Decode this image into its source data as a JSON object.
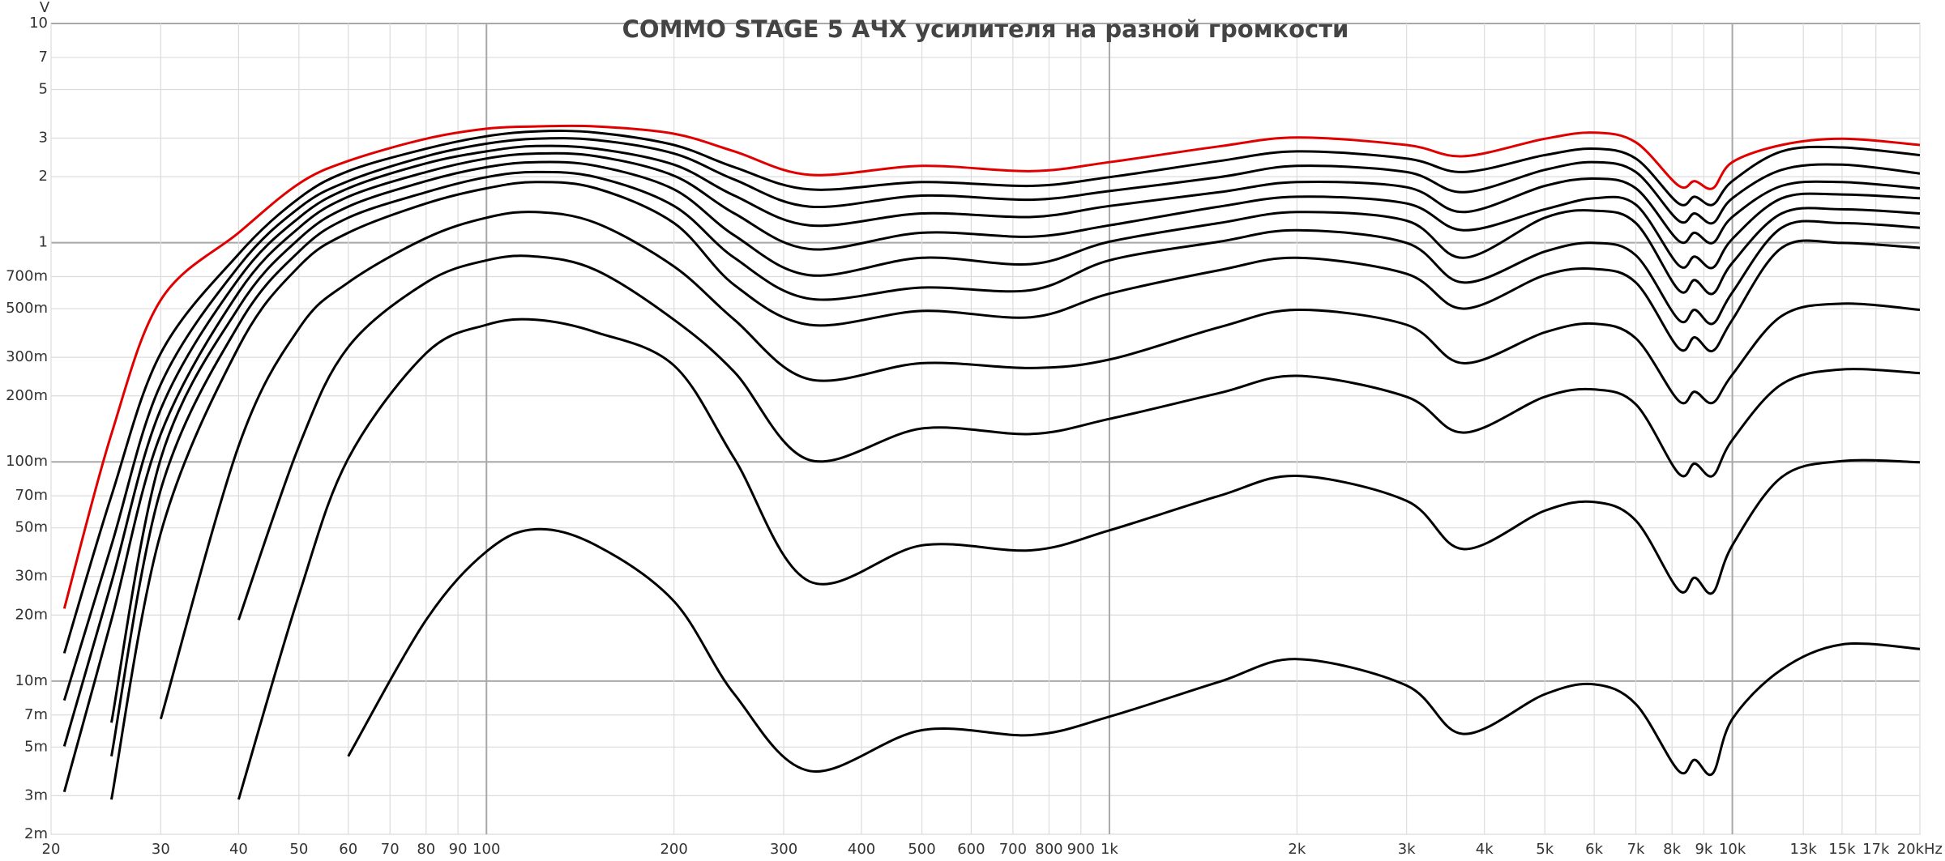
{
  "chart_data": {
    "type": "line",
    "title": "COMMO STAGE 5 АЧХ усилителя на разной громкости",
    "ylabel": "V",
    "xscale": "log",
    "yscale": "log",
    "grid": true,
    "xlim": [
      20,
      20000
    ],
    "ylim": [
      0.002,
      10
    ],
    "xticks": [
      20,
      30,
      40,
      50,
      60,
      70,
      80,
      90,
      100,
      200,
      300,
      400,
      500,
      600,
      700,
      800,
      900,
      {
        "value": 1000,
        "label": "1k"
      },
      {
        "value": 2000,
        "label": "2k"
      },
      {
        "value": 3000,
        "label": "3k"
      },
      {
        "value": 4000,
        "label": "4k"
      },
      {
        "value": 5000,
        "label": "5k"
      },
      {
        "value": 6000,
        "label": "6k"
      },
      {
        "value": 7000,
        "label": "7k"
      },
      {
        "value": 8000,
        "label": "8k"
      },
      {
        "value": 9000,
        "label": "9k"
      },
      {
        "value": 10000,
        "label": "10k"
      },
      {
        "value": 13000,
        "label": "13k"
      },
      {
        "value": 15000,
        "label": "15k"
      },
      {
        "value": 17000,
        "label": "17k"
      },
      {
        "value": 20000,
        "label": "20kHz"
      }
    ],
    "yticks": [
      10,
      7,
      5,
      3,
      2,
      1,
      {
        "value": 0.7,
        "label": "700m"
      },
      {
        "value": 0.5,
        "label": "500m"
      },
      {
        "value": 0.3,
        "label": "300m"
      },
      {
        "value": 0.2,
        "label": "200m"
      },
      {
        "value": 0.1,
        "label": "100m"
      },
      {
        "value": 0.07,
        "label": "70m"
      },
      {
        "value": 0.05,
        "label": "50m"
      },
      {
        "value": 0.03,
        "label": "30m"
      },
      {
        "value": 0.02,
        "label": "20m"
      },
      {
        "value": 0.01,
        "label": "10m"
      },
      {
        "value": 0.007,
        "label": "7m"
      },
      {
        "value": 0.005,
        "label": "5m"
      },
      {
        "value": 0.003,
        "label": "3m"
      },
      {
        "value": 0.002,
        "label": "2m"
      }
    ],
    "x": [
      21,
      25,
      30,
      40,
      50,
      60,
      80,
      100,
      120,
      150,
      200,
      250,
      330,
      500,
      750,
      1000,
      1500,
      2000,
      3000,
      3700,
      5000,
      6000,
      7000,
      8200,
      8700,
      9300,
      10000,
      12000,
      15000,
      20000
    ],
    "series": [
      {
        "color": "#e00000",
        "values": [
          0.0214,
          0.134,
          0.548,
          1.11,
          1.86,
          2.36,
          2.98,
          3.31,
          3.39,
          3.39,
          3.14,
          2.61,
          2.04,
          2.24,
          2.12,
          2.33,
          2.75,
          3.02,
          2.79,
          2.48,
          2.98,
          3.18,
          2.87,
          1.82,
          1.91,
          1.77,
          2.33,
          2.79,
          2.98,
          2.79
        ]
      },
      {
        "color": "#000000",
        "values": [
          0.0134,
          0.07,
          0.313,
          0.887,
          1.594,
          2.12,
          2.684,
          3.058,
          3.22,
          3.18,
          2.79,
          2.21,
          1.75,
          1.89,
          1.816,
          1.99,
          2.357,
          2.61,
          2.42,
          2.1,
          2.51,
          2.684,
          2.42,
          1.51,
          1.62,
          1.49,
          1.91,
          2.61,
          2.72,
          2.51
        ]
      },
      {
        "color": "#000000",
        "values": [
          0.00816,
          0.0416,
          0.226,
          0.779,
          1.44,
          1.91,
          2.48,
          2.83,
          2.98,
          2.94,
          2.55,
          1.94,
          1.46,
          1.64,
          1.57,
          1.72,
          1.99,
          2.24,
          2.1,
          1.7,
          2.15,
          2.33,
          2.1,
          1.26,
          1.36,
          1.229,
          1.594,
          2.15,
          2.27,
          2.069
        ]
      },
      {
        "color": "#000000",
        "values": [
          0.00504,
          0.0281,
          0.174,
          0.684,
          1.3,
          1.77,
          2.3,
          2.61,
          2.76,
          2.684,
          2.27,
          1.64,
          1.2,
          1.36,
          1.31,
          1.47,
          1.7,
          1.89,
          1.79,
          1.38,
          1.816,
          1.96,
          1.77,
          1.02,
          1.11,
          0.998,
          1.31,
          1.816,
          1.89,
          1.77
        ]
      },
      {
        "color": "#000000",
        "values": [
          0.00312,
          0.019,
          0.134,
          0.593,
          1.17,
          1.62,
          2.1,
          2.42,
          2.55,
          2.48,
          2.02,
          1.36,
          0.935,
          1.11,
          1.065,
          1.2,
          1.46,
          1.62,
          1.51,
          1.14,
          1.42,
          1.594,
          1.49,
          0.789,
          0.865,
          0.769,
          1.04,
          1.594,
          1.66,
          1.594
        ]
      },
      {
        "color": "#000000",
        "values": [
          null,
          0.00646,
          0.1035,
          0.506,
          1.04,
          1.46,
          1.91,
          2.21,
          2.33,
          2.24,
          1.75,
          1.079,
          0.711,
          0.853,
          0.799,
          1.01,
          1.229,
          1.38,
          1.26,
          0.853,
          1.3,
          1.4,
          1.229,
          0.608,
          0.675,
          0.585,
          0.809,
          1.36,
          1.42,
          1.36
        ]
      },
      {
        "color": "#000000",
        "values": [
          null,
          0.00454,
          0.0748,
          0.422,
          0.911,
          1.3,
          1.7,
          1.99,
          2.1,
          1.99,
          1.47,
          0.853,
          0.555,
          0.624,
          0.608,
          0.831,
          1.01,
          1.14,
          0.998,
          0.658,
          0.911,
          0.998,
          0.876,
          0.445,
          0.494,
          0.427,
          0.593,
          1.17,
          1.229,
          1.17
        ]
      },
      {
        "color": "#000000",
        "values": [
          null,
          0.00288,
          0.0474,
          0.334,
          0.779,
          1.11,
          1.51,
          1.77,
          1.89,
          1.77,
          1.229,
          0.641,
          0.422,
          0.488,
          0.457,
          0.585,
          0.749,
          0.853,
          0.721,
          0.5,
          0.711,
          0.759,
          0.658,
          0.33,
          0.37,
          0.321,
          0.445,
          0.947,
          0.998,
          0.947
        ]
      },
      {
        "color": "#000000",
        "values": [
          null,
          null,
          0.00671,
          0.118,
          0.406,
          0.658,
          1.05,
          1.3,
          1.38,
          1.229,
          0.779,
          0.445,
          0.238,
          0.282,
          0.268,
          0.293,
          0.411,
          0.494,
          0.422,
          0.282,
          0.39,
          0.427,
          0.366,
          0.19,
          0.209,
          0.186,
          0.25,
          0.463,
          0.527,
          0.494
        ]
      },
      {
        "color": "#000000",
        "values": [
          null,
          null,
          null,
          0.019,
          0.118,
          0.334,
          0.658,
          0.831,
          0.865,
          0.749,
          0.445,
          0.257,
          0.102,
          0.142,
          0.134,
          0.157,
          0.206,
          0.247,
          0.198,
          0.136,
          0.198,
          0.214,
          0.183,
          0.0885,
          0.0982,
          0.0863,
          0.126,
          0.226,
          0.264,
          0.254
        ]
      },
      {
        "color": "#000000",
        "values": [
          null,
          null,
          null,
          0.00288,
          0.0247,
          0.1035,
          0.313,
          0.422,
          0.445,
          0.39,
          0.275,
          0.1035,
          0.0285,
          0.0416,
          0.0395,
          0.0487,
          0.07,
          0.0863,
          0.0664,
          0.04,
          0.0599,
          0.0656,
          0.054,
          0.026,
          0.0296,
          0.0253,
          0.0416,
          0.0852,
          0.1008,
          0.0996
        ]
      },
      {
        "color": "#000000",
        "values": [
          null,
          null,
          null,
          null,
          null,
          0.00454,
          0.019,
          0.039,
          0.0493,
          0.0416,
          0.0231,
          0.00871,
          0.00389,
          0.00597,
          0.00567,
          0.00688,
          0.00992,
          0.0126,
          0.00954,
          0.00574,
          0.00871,
          0.00966,
          0.00785,
          0.00389,
          0.00437,
          0.00379,
          0.00671,
          0.0113,
          0.0147,
          0.014
        ]
      }
    ]
  }
}
